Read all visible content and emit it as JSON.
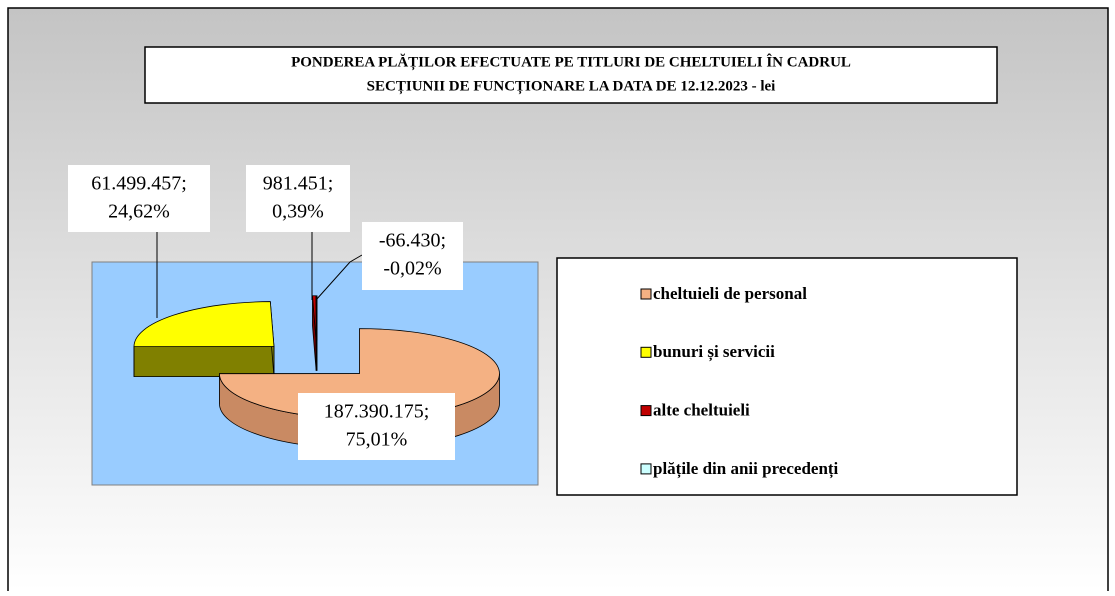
{
  "chart_data": {
    "type": "pie3d",
    "title": [
      "PONDEREA PLĂȚILOR EFECTUATE PE TITLURI DE CHELTUIELI ÎN CADRUL",
      "SECȚIUNII DE FUNCȚIONARE LA DATA DE 12.12.2023 - lei"
    ],
    "categories": [
      "cheltuieli de personal",
      "bunuri și servicii",
      "alte cheltuieli",
      "plățile din anii precedenți"
    ],
    "values": [
      187390175,
      61499457,
      981451,
      -66430
    ],
    "value_labels": [
      "187.390.175;",
      "61.499.457;",
      "981.451;",
      "-66.430;"
    ],
    "percent_labels": [
      "75,01%",
      "24,62%",
      "0,39%",
      "-0,02%"
    ],
    "colors": [
      "#f4b183",
      "#ffff00",
      "#c00000",
      "#ccffff"
    ],
    "side_colors": [
      "#c98a63",
      "#808000",
      "#7a0000",
      "#8fb5b5"
    ],
    "legend": "right"
  }
}
